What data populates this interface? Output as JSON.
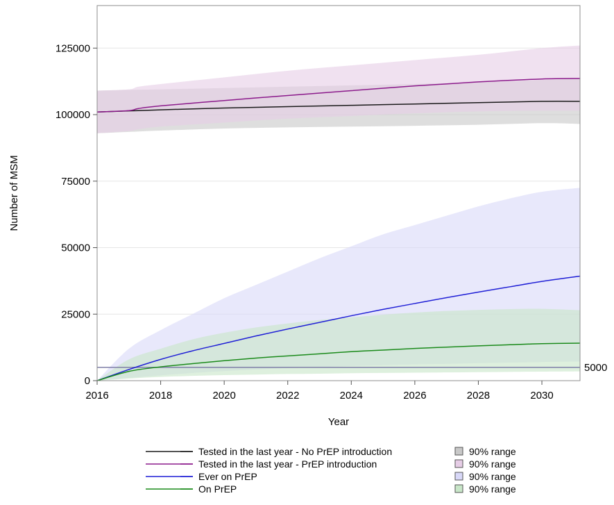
{
  "chart_data": {
    "type": "line",
    "title": "",
    "xlabel": "Year",
    "ylabel": "Number of MSM",
    "xlim": [
      2016,
      2031.2
    ],
    "ylim": [
      0,
      141000
    ],
    "x_ticks": [
      2016,
      2018,
      2020,
      2022,
      2024,
      2026,
      2028,
      2030
    ],
    "y_ticks": [
      0,
      25000,
      50000,
      75000,
      100000,
      125000
    ],
    "grid": "horizontal",
    "reference_line": {
      "y": 5000,
      "label": "5000",
      "color": "#7f7fa8"
    },
    "band_label": "90% range",
    "series": [
      {
        "name": "Tested in the last year - No PrEP introduction",
        "color": "#1a1a1a",
        "band_color": "#c8c8c8",
        "x": [
          2016,
          2017,
          2018,
          2020,
          2022,
          2024,
          2026,
          2028,
          2030,
          2031.2
        ],
        "y": [
          101000,
          101400,
          101800,
          102500,
          103000,
          103500,
          104000,
          104500,
          105000,
          105000
        ],
        "lower": [
          93000,
          93500,
          94000,
          94800,
          95200,
          95500,
          95800,
          96200,
          96800,
          96500
        ],
        "upper": [
          109000,
          109300,
          109500,
          110000,
          110500,
          111000,
          111500,
          112200,
          113000,
          113500
        ]
      },
      {
        "name": "Tested in the last year - PrEP introduction",
        "color": "#8b1a8b",
        "band_color": "#e6cde6",
        "x": [
          2016,
          2017,
          2017.3,
          2018,
          2020,
          2022,
          2024,
          2026,
          2028,
          2030,
          2031.2
        ],
        "y": [
          101000,
          101500,
          102300,
          103300,
          105300,
          107200,
          109000,
          110800,
          112300,
          113400,
          113600
        ],
        "lower": [
          93000,
          93800,
          94500,
          95500,
          97000,
          98500,
          99500,
          100500,
          101200,
          101500,
          101500
        ],
        "upper": [
          109000,
          109500,
          110500,
          111500,
          114000,
          116500,
          118500,
          120500,
          122500,
          125000,
          126000
        ]
      },
      {
        "name": "Ever on PrEP",
        "color": "#1f1fd6",
        "band_color": "#d8d8f8",
        "x": [
          2016,
          2017,
          2018,
          2019,
          2020,
          2021,
          2022,
          2023,
          2024,
          2025,
          2026,
          2027,
          2028,
          2029,
          2030,
          2031.2
        ],
        "y": [
          0,
          4200,
          8000,
          11200,
          14000,
          16800,
          19400,
          21900,
          24400,
          26800,
          29000,
          31200,
          33300,
          35300,
          37300,
          39300
        ],
        "lower": [
          0,
          1000,
          2000,
          2900,
          3600,
          4200,
          4700,
          5100,
          5500,
          5800,
          6100,
          6300,
          6600,
          6800,
          7000,
          7200
        ],
        "upper": [
          0,
          12000,
          19000,
          25000,
          31000,
          36000,
          41000,
          46000,
          50500,
          55000,
          58500,
          62000,
          65500,
          68500,
          71000,
          72500
        ]
      },
      {
        "name": "On PrEP",
        "color": "#1a8a1a",
        "band_color": "#c8e6c8",
        "x": [
          2016,
          2017,
          2018,
          2019,
          2020,
          2021,
          2022,
          2023,
          2024,
          2025,
          2026,
          2027,
          2028,
          2029,
          2030,
          2031.2
        ],
        "y": [
          0,
          3500,
          5200,
          6400,
          7500,
          8500,
          9300,
          10100,
          10900,
          11500,
          12100,
          12600,
          13100,
          13500,
          13900,
          14100
        ],
        "lower": [
          0,
          800,
          1400,
          1800,
          2100,
          2300,
          2500,
          2600,
          2800,
          2900,
          3000,
          3100,
          3200,
          3300,
          3400,
          3500
        ],
        "upper": [
          0,
          8000,
          12000,
          15500,
          18000,
          20000,
          21500,
          22800,
          23800,
          24800,
          25600,
          26200,
          26600,
          26900,
          27000,
          26500
        ]
      }
    ]
  }
}
